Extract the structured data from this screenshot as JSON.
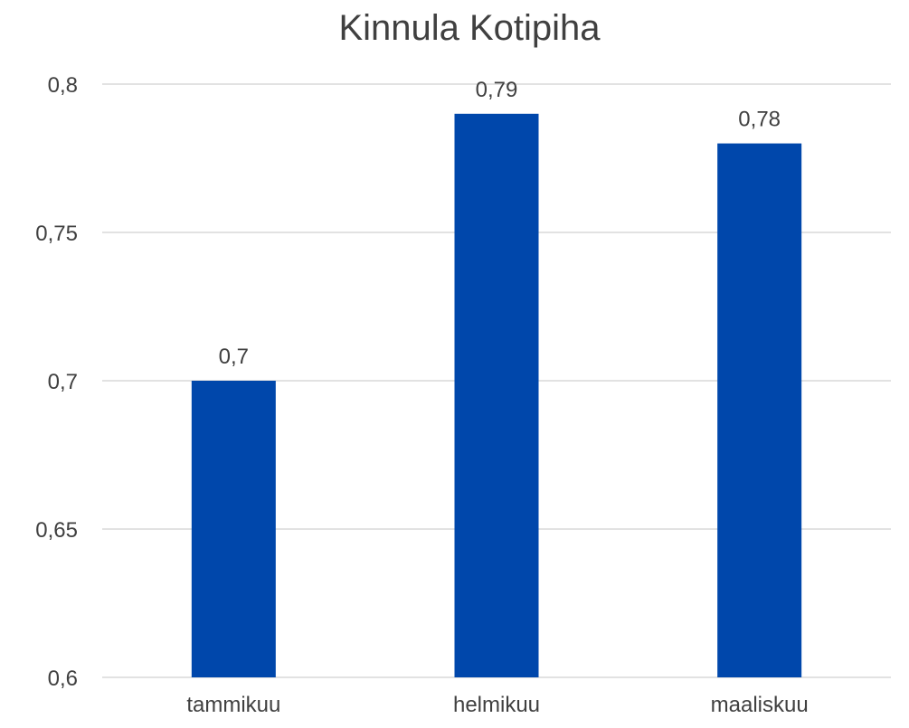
{
  "chart_data": {
    "type": "bar",
    "title": "Kinnula Kotipiha",
    "xlabel": "",
    "ylabel": "",
    "categories": [
      "tammikuu",
      "helmikuu",
      "maaliskuu"
    ],
    "values": [
      0.7,
      0.79,
      0.78
    ],
    "value_labels": [
      "0,7",
      "0,79",
      "0,78"
    ],
    "ylim": [
      0.6,
      0.8
    ],
    "yticks": [
      0.6,
      0.65,
      0.7,
      0.75,
      0.8
    ],
    "ytick_labels": [
      "0,6",
      "0,65",
      "0,7",
      "0,75",
      "0,8"
    ],
    "grid": true,
    "legend": "none",
    "bar_color": "#0047AB"
  }
}
